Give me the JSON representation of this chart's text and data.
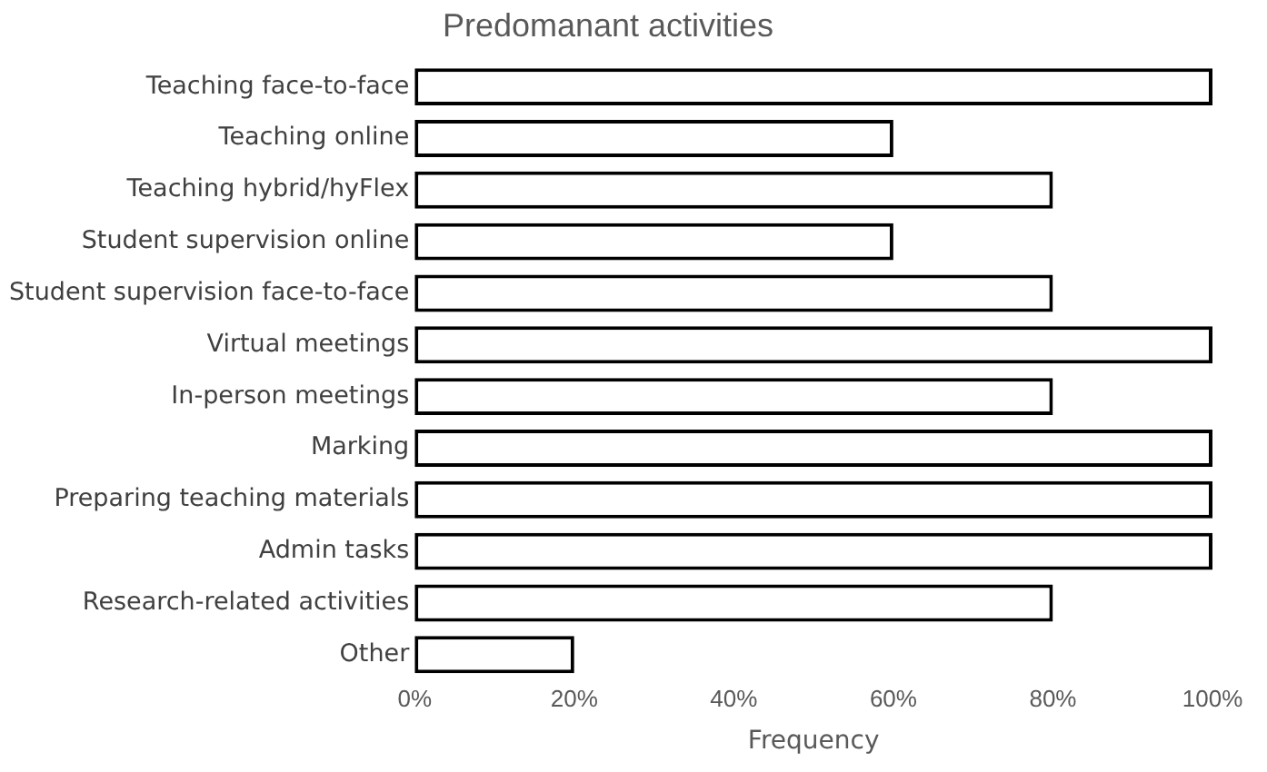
{
  "chart_data": {
    "type": "bar",
    "orientation": "horizontal",
    "title": "Predomanant activities",
    "xlabel": "Frequency",
    "categories": [
      "Teaching face-to-face",
      "Teaching online",
      "Teaching hybrid/hyFlex",
      "Student supervision online",
      "Student supervision face-to-face",
      "Virtual meetings",
      "In-person meetings",
      "Marking",
      "Preparing teaching materials",
      "Admin tasks",
      "Research-related activities",
      "Other"
    ],
    "values": [
      100,
      60,
      80,
      60,
      80,
      100,
      80,
      100,
      100,
      100,
      80,
      20
    ],
    "color": "#ffffff",
    "xlim": [
      0,
      100
    ],
    "xticks": [
      {
        "value": 0,
        "label": "0%"
      },
      {
        "value": 20,
        "label": "20%"
      },
      {
        "value": 40,
        "label": "40%"
      },
      {
        "value": 60,
        "label": "60%"
      },
      {
        "value": 80,
        "label": "80%"
      },
      {
        "value": 100,
        "label": "100%"
      }
    ],
    "grid": false,
    "legend": false
  }
}
